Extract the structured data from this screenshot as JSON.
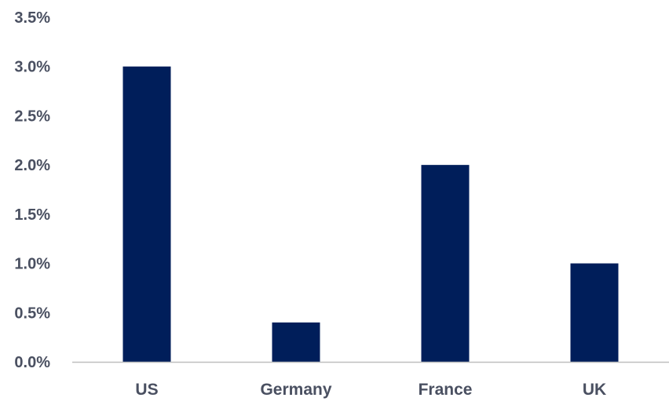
{
  "chart_data": {
    "type": "bar",
    "categories": [
      "US",
      "Germany",
      "France",
      "UK"
    ],
    "values": [
      3.0,
      0.4,
      2.0,
      1.0
    ],
    "yticks": [
      "0.0%",
      "0.5%",
      "1.0%",
      "1.5%",
      "2.0%",
      "2.5%",
      "3.0%",
      "3.5%"
    ],
    "ylim": [
      0,
      3.5
    ],
    "grid": false,
    "title": "",
    "xlabel": "",
    "ylabel": ""
  },
  "colors": {
    "bar": "#001E5A",
    "text": "#4A5061",
    "axis": "#BFBFBF"
  }
}
